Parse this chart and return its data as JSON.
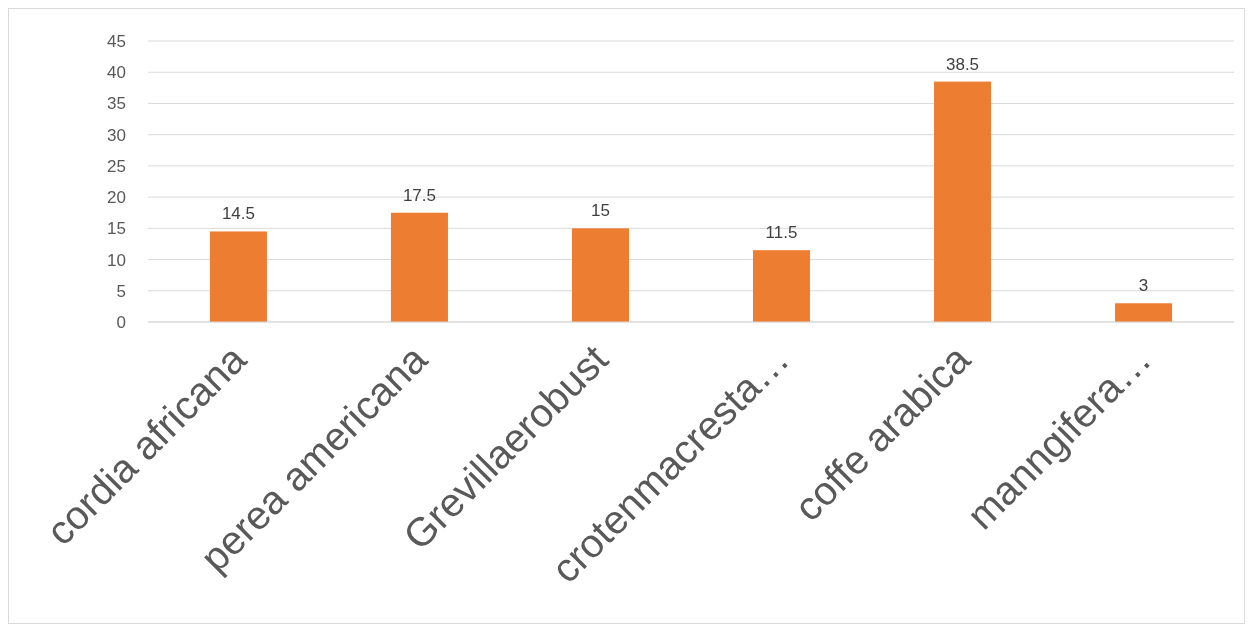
{
  "chart_data": {
    "type": "bar",
    "categories": [
      "cordia africana",
      "perea americana",
      "Grevillaerobust",
      "crotenmacresta…",
      "coffe arabica",
      "manngifera…"
    ],
    "values": [
      14.5,
      17.5,
      15,
      11.5,
      38.5,
      3
    ],
    "color": "#ed7d31",
    "ylim": [
      0,
      45
    ],
    "yticks": [
      0,
      5,
      10,
      15,
      20,
      25,
      30,
      35,
      40,
      45
    ],
    "grid": "y",
    "data_labels": true
  }
}
